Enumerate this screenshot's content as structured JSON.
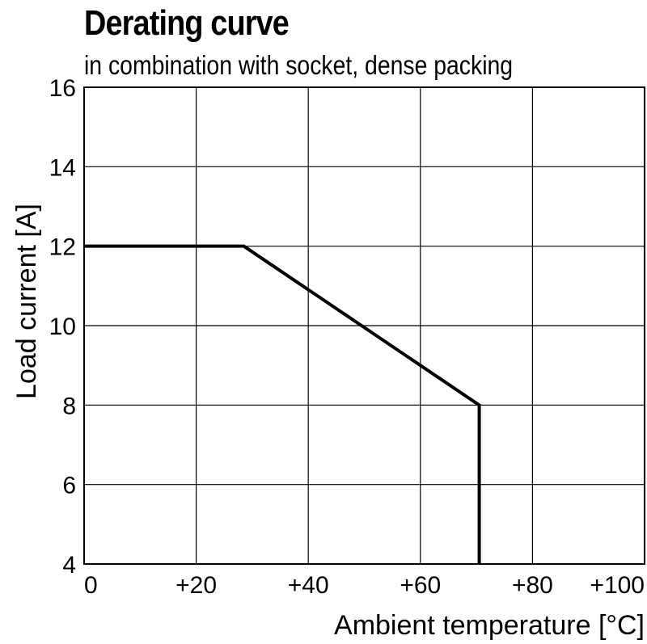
{
  "chart_data": {
    "type": "line",
    "title": "Derating curve",
    "subtitle": "in combination with socket, dense packing",
    "xlabel": "Ambient temperature [°C]",
    "ylabel": "Load current [A]",
    "xlim": [
      0,
      100
    ],
    "ylim": [
      4,
      16
    ],
    "x_ticks": [
      0,
      20,
      40,
      60,
      80,
      100
    ],
    "x_tick_labels": [
      "0",
      "+20",
      "+40",
      "+60",
      "+80",
      "+100"
    ],
    "y_ticks": [
      4,
      6,
      8,
      10,
      12,
      14,
      16
    ],
    "y_tick_labels": [
      "4",
      "6",
      "8",
      "10",
      "12",
      "14",
      "16"
    ],
    "grid": true,
    "series": [
      {
        "points": [
          [
            0,
            12
          ],
          [
            28.5,
            12
          ],
          [
            70.5,
            8
          ],
          [
            70.5,
            4
          ]
        ],
        "color": "#000000"
      }
    ]
  }
}
